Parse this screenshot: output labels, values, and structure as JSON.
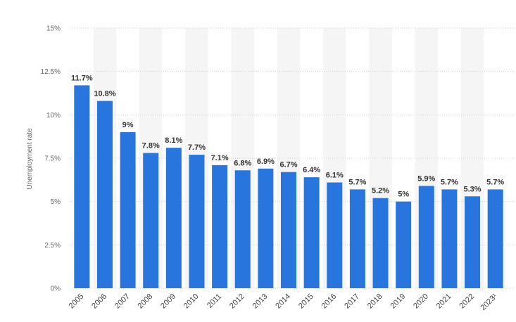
{
  "chart_data": {
    "type": "bar",
    "title": "",
    "xlabel": "",
    "ylabel": "Unemployment rate",
    "categories": [
      "2005",
      "2006",
      "2007",
      "2008",
      "2009",
      "2010",
      "2011",
      "2012",
      "2013",
      "2014",
      "2015",
      "2016",
      "2017",
      "2018",
      "2019",
      "2020",
      "2021",
      "2022",
      "2023¹"
    ],
    "values": [
      11.7,
      10.8,
      9,
      7.8,
      8.1,
      7.7,
      7.1,
      6.8,
      6.9,
      6.7,
      6.4,
      6.1,
      5.7,
      5.2,
      5,
      5.9,
      5.7,
      5.3,
      5.7
    ],
    "value_labels": [
      "11.7%",
      "10.8%",
      "9%",
      "7.8%",
      "8.1%",
      "7.7%",
      "7.1%",
      "6.8%",
      "6.9%",
      "6.7%",
      "6.4%",
      "6.1%",
      "5.7%",
      "5.2%",
      "5%",
      "5.9%",
      "5.7%",
      "5.3%",
      "5.7%"
    ],
    "ylim": [
      0,
      15
    ],
    "yticks": [
      0,
      2.5,
      5,
      7.5,
      10,
      12.5,
      15
    ],
    "ytick_labels": [
      "0%",
      "2.5%",
      "5%",
      "7.5%",
      "10%",
      "12.5%",
      "15%"
    ],
    "grid": true,
    "bar_color": "#2876dd",
    "band_color": "#f5f5f5",
    "grid_color": "#cfcfcf"
  }
}
